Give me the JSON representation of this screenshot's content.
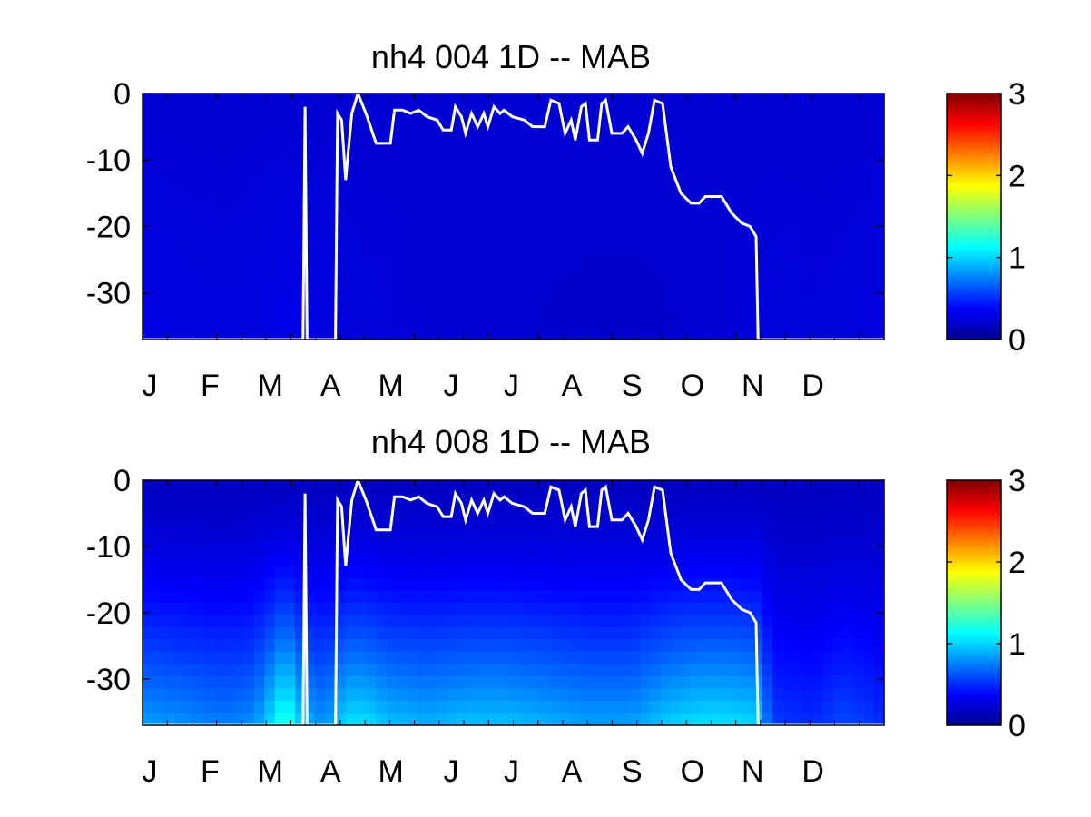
{
  "chart_data": [
    {
      "type": "heatmap",
      "title": "nh4  004 1D   -- MAB",
      "xlabel": "",
      "ylabel": "",
      "x_tick_labels": [
        "J",
        "F",
        "M",
        "A",
        "M",
        "J",
        "J",
        "A",
        "S",
        "O",
        "N",
        "D"
      ],
      "y_ticks": [
        0,
        -10,
        -20,
        -30
      ],
      "ylim": [
        -37,
        0
      ],
      "xlim_days": [
        0,
        365
      ],
      "colorbar": {
        "ticks": [
          0,
          1,
          2,
          3
        ],
        "range": [
          0,
          3
        ],
        "colormap": "jet"
      },
      "field": {
        "base": 0.25,
        "bottom_add": 0.05,
        "x_days": [
          0,
          20,
          40,
          55,
          70,
          80,
          100,
          120,
          140,
          160,
          180,
          200,
          220,
          240,
          260,
          280,
          300,
          310,
          330,
          350,
          365
        ],
        "value": [
          0.3,
          0.28,
          0.27,
          0.28,
          0.32,
          0.3,
          0.27,
          0.26,
          0.25,
          0.24,
          0.24,
          0.23,
          0.22,
          0.22,
          0.23,
          0.25,
          0.26,
          0.27,
          0.26,
          0.27,
          0.28
        ]
      },
      "overlay_line": {
        "color": "#ffffff",
        "points": [
          [
            0,
            -37
          ],
          [
            79,
            -37
          ],
          [
            80,
            -2
          ],
          [
            81,
            -37
          ],
          [
            95,
            -37
          ],
          [
            96,
            -3
          ],
          [
            98,
            -4
          ],
          [
            100,
            -13
          ],
          [
            103,
            -3
          ],
          [
            106,
            0
          ],
          [
            110,
            -3
          ],
          [
            115,
            -7.5
          ],
          [
            122,
            -7.5
          ],
          [
            124,
            -2.5
          ],
          [
            128,
            -2.5
          ],
          [
            132,
            -3
          ],
          [
            136,
            -2.5
          ],
          [
            140,
            -3.5
          ],
          [
            145,
            -4
          ],
          [
            148,
            -5.5
          ],
          [
            152,
            -5.5
          ],
          [
            154,
            -2
          ],
          [
            157,
            -3.5
          ],
          [
            159,
            -6
          ],
          [
            162,
            -3
          ],
          [
            165,
            -5
          ],
          [
            168,
            -3
          ],
          [
            170,
            -5
          ],
          [
            173,
            -2
          ],
          [
            176,
            -3
          ],
          [
            178,
            -2.5
          ],
          [
            182,
            -3.5
          ],
          [
            188,
            -4
          ],
          [
            192,
            -5
          ],
          [
            198,
            -5
          ],
          [
            201,
            -1
          ],
          [
            205,
            -1.5
          ],
          [
            208,
            -6
          ],
          [
            211,
            -4
          ],
          [
            213,
            -7
          ],
          [
            216,
            -2
          ],
          [
            218,
            -1.5
          ],
          [
            220,
            -7
          ],
          [
            224,
            -7
          ],
          [
            226,
            -1.5
          ],
          [
            228,
            -1
          ],
          [
            231,
            -6
          ],
          [
            236,
            -6
          ],
          [
            239,
            -5
          ],
          [
            243,
            -7
          ],
          [
            246,
            -9
          ],
          [
            249,
            -6
          ],
          [
            252,
            -1
          ],
          [
            256,
            -1.5
          ],
          [
            260,
            -11
          ],
          [
            265,
            -15
          ],
          [
            270,
            -16.5
          ],
          [
            274,
            -16.5
          ],
          [
            277,
            -15.5
          ],
          [
            285,
            -15.5
          ],
          [
            290,
            -18
          ],
          [
            295,
            -19.5
          ],
          [
            299,
            -20
          ],
          [
            302,
            -21.5
          ],
          [
            303,
            -37
          ],
          [
            365,
            -37
          ]
        ]
      }
    },
    {
      "type": "heatmap",
      "title": "nh4  008 1D   -- MAB",
      "xlabel": "",
      "ylabel": "",
      "x_tick_labels": [
        "J",
        "F",
        "M",
        "A",
        "M",
        "J",
        "J",
        "A",
        "S",
        "O",
        "N",
        "D"
      ],
      "y_ticks": [
        0,
        -10,
        -20,
        -30
      ],
      "ylim": [
        -37,
        0
      ],
      "xlim_days": [
        0,
        365
      ],
      "colorbar": {
        "ticks": [
          0,
          1,
          2,
          3
        ],
        "range": [
          0,
          3
        ],
        "colormap": "jet"
      },
      "field": {
        "base": 0.2,
        "bottom_add": 0.55,
        "x_days": [
          0,
          20,
          40,
          55,
          65,
          70,
          80,
          90,
          100,
          110,
          120,
          140,
          160,
          180,
          200,
          220,
          240,
          260,
          275,
          290,
          303,
          310,
          330,
          345,
          365
        ],
        "value": [
          0.85,
          0.8,
          0.75,
          0.8,
          1.1,
          1.3,
          0.9,
          0.8,
          1.05,
          1.05,
          0.95,
          0.9,
          0.95,
          0.95,
          0.9,
          0.85,
          0.85,
          1.0,
          1.05,
          1.05,
          1.0,
          0.55,
          0.5,
          0.6,
          0.5
        ]
      },
      "overlay_line": {
        "color": "#ffffff",
        "points": [
          [
            0,
            -37
          ],
          [
            79,
            -37
          ],
          [
            80,
            -2
          ],
          [
            81,
            -37
          ],
          [
            95,
            -37
          ],
          [
            96,
            -3
          ],
          [
            98,
            -4
          ],
          [
            100,
            -13
          ],
          [
            103,
            -3
          ],
          [
            106,
            0
          ],
          [
            110,
            -3
          ],
          [
            115,
            -7.5
          ],
          [
            122,
            -7.5
          ],
          [
            124,
            -2.5
          ],
          [
            128,
            -2.5
          ],
          [
            132,
            -3
          ],
          [
            136,
            -2.5
          ],
          [
            140,
            -3.5
          ],
          [
            145,
            -4
          ],
          [
            148,
            -5.5
          ],
          [
            152,
            -5.5
          ],
          [
            154,
            -2
          ],
          [
            157,
            -3.5
          ],
          [
            159,
            -6
          ],
          [
            162,
            -3
          ],
          [
            165,
            -5
          ],
          [
            168,
            -3
          ],
          [
            170,
            -5
          ],
          [
            173,
            -2
          ],
          [
            176,
            -3
          ],
          [
            178,
            -2.5
          ],
          [
            182,
            -3.5
          ],
          [
            188,
            -4
          ],
          [
            192,
            -5
          ],
          [
            198,
            -5
          ],
          [
            201,
            -1
          ],
          [
            205,
            -1.5
          ],
          [
            208,
            -6
          ],
          [
            211,
            -4
          ],
          [
            213,
            -7
          ],
          [
            216,
            -2
          ],
          [
            218,
            -1.5
          ],
          [
            220,
            -7
          ],
          [
            224,
            -7
          ],
          [
            226,
            -1.5
          ],
          [
            228,
            -1
          ],
          [
            231,
            -6
          ],
          [
            236,
            -6
          ],
          [
            239,
            -5
          ],
          [
            243,
            -7
          ],
          [
            246,
            -9
          ],
          [
            249,
            -6
          ],
          [
            252,
            -1
          ],
          [
            256,
            -1.5
          ],
          [
            260,
            -11
          ],
          [
            265,
            -15
          ],
          [
            270,
            -16.5
          ],
          [
            274,
            -16.5
          ],
          [
            277,
            -15.5
          ],
          [
            285,
            -15.5
          ],
          [
            290,
            -18
          ],
          [
            295,
            -19.5
          ],
          [
            299,
            -20
          ],
          [
            302,
            -21.5
          ],
          [
            303,
            -37
          ],
          [
            365,
            -37
          ]
        ]
      }
    }
  ]
}
